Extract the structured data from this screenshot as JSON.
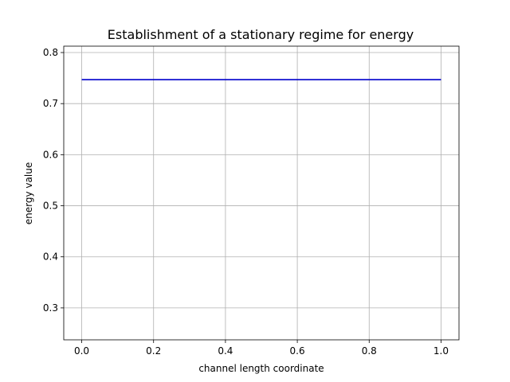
{
  "chart_data": {
    "type": "line",
    "title": "Establishment of a stationary regime for energy",
    "xlabel": "channel length coordinate",
    "ylabel": "energy value",
    "xlim": [
      -0.05,
      1.05
    ],
    "ylim": [
      0.2375,
      0.8125
    ],
    "xticks": [
      "0.0",
      "0.2",
      "0.4",
      "0.6",
      "0.8",
      "1.0"
    ],
    "yticks": [
      "0.3",
      "0.4",
      "0.5",
      "0.6",
      "0.7",
      "0.8"
    ],
    "grid": true,
    "series": [
      {
        "color": "#0000cc",
        "x": [
          0.0,
          0.1,
          0.2,
          0.3,
          0.4,
          0.5,
          0.6,
          0.7,
          0.8,
          0.9,
          1.0
        ],
        "y": [
          0.747,
          0.747,
          0.747,
          0.747,
          0.747,
          0.747,
          0.747,
          0.747,
          0.747,
          0.747,
          0.747
        ]
      }
    ]
  }
}
